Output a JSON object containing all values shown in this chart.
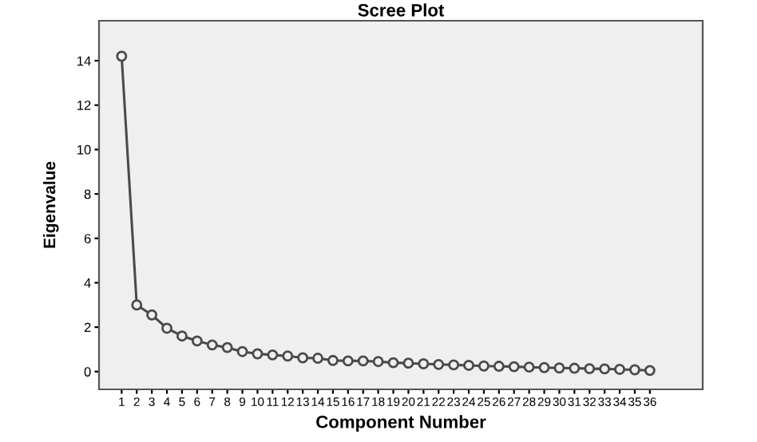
{
  "chart_data": {
    "type": "line",
    "title": "Scree Plot",
    "xlabel": "Component Number",
    "ylabel": "Eigenvalue",
    "categories": [
      "1",
      "2",
      "3",
      "4",
      "5",
      "6",
      "7",
      "8",
      "9",
      "10",
      "11",
      "12",
      "13",
      "14",
      "15",
      "16",
      "17",
      "18",
      "19",
      "20",
      "21",
      "22",
      "23",
      "24",
      "25",
      "26",
      "27",
      "28",
      "29",
      "30",
      "31",
      "32",
      "33",
      "34",
      "35",
      "36"
    ],
    "series": [
      {
        "color": "#4a4a4a",
        "values": [
          14.2,
          3.0,
          2.55,
          1.95,
          1.6,
          1.38,
          1.2,
          1.08,
          0.9,
          0.8,
          0.75,
          0.7,
          0.62,
          0.6,
          0.5,
          0.48,
          0.48,
          0.45,
          0.4,
          0.38,
          0.35,
          0.32,
          0.3,
          0.28,
          0.25,
          0.24,
          0.22,
          0.2,
          0.18,
          0.16,
          0.15,
          0.13,
          0.12,
          0.1,
          0.08,
          0.05
        ]
      }
    ],
    "ylim": [
      -0.8,
      15.8
    ],
    "yticks": [
      0,
      2,
      4,
      6,
      8,
      10,
      12,
      14
    ],
    "grid": false,
    "legend": false,
    "marker": "circle",
    "line_style": "solid"
  }
}
